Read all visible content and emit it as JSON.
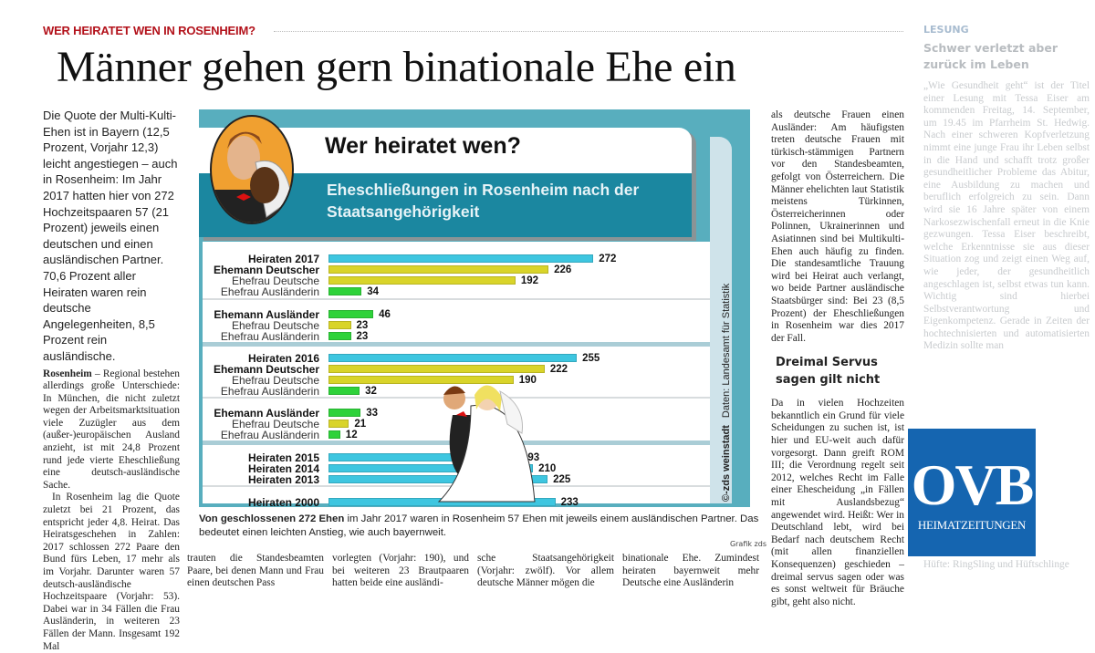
{
  "article": {
    "kicker": "WER HEIRATET WEN IN ROSENHEIM?",
    "headline": "Männer gehen gern binationale Ehe ein",
    "lead": "Die Quote der Multi-Kulti-Ehen ist in Bayern (12,5 Prozent, Vorjahr 12,3) leicht angestiegen – auch in Rosenheim: Im Jahr 2017 hatten hier von 272 Hochzeitspaaren 57 (21 Prozent) jeweils einen deutschen und einen ausländischen Partner. 70,6 Prozent aller Heiraten waren rein deutsche Angelegenheiten, 8,5 Prozent rein ausländische.",
    "dateline": "Rosenheim",
    "para1": " – Regional bestehen allerdings große Unterschiede: In München, die nicht zuletzt wegen der Arbeitsmarktsituation viele Zuzügler aus dem (außer-)europäischen Ausland anzieht, ist mit 24,8 Prozent rund jede vierte Eheschließung eine deutsch-ausländische Sache.",
    "para2": "In Rosenheim lag die Quote zuletzt bei 21 Prozent, das entspricht jeder 4,8. Heirat. Das Heiratsgeschehen in Zahlen: 2017 schlossen 272 Paare den Bund fürs Leben, 17 mehr als im Vorjahr. Darunter waren 57 deutsch-ausländische Hochzeitspaare (Vorjahr: 53). Dabei war in 34 Fällen die Frau Ausländerin, in weiteren 23 Fällen der Mann. Insgesamt 192 Mal",
    "bottom_cols": [
      "trauten die Standesbeamten Paare, bei denen Mann und Frau einen deutschen Pass",
      "vorlegten (Vorjahr: 190), und bei weiteren 23 Brautpaaren hatten beide eine ausländi-",
      "sche Staatsangehörigkeit (Vorjahr: zwölf). Vor allem deutsche Männer mögen die",
      "binationale Ehe. Zumindest heiraten bayernweit mehr Deutsche eine Ausländerin"
    ],
    "right_col": "als deutsche Frauen einen Ausländer: Am häufigsten treten deutsche Frauen mit türkisch-stämmigen Partnern vor den Standesbeamten, gefolgt von Österreichern. Die Männer ehelichten laut Statistik meistens Türkinnen, Österreicherinnen oder Polinnen, Ukrainerinnen und Asiatinnen sind bei Multikulti-Ehen auch häufig zu finden. Die standesamtliche Trauung wird bei Heirat auch verlangt, wo beide Partner ausländische Staatsbürger sind: Bei 23 (8,5 Prozent) der Eheschließungen in Rosenheim war dies 2017 der Fall.",
    "subhead": "Dreimal Servus sagen gilt nicht",
    "right_col2": "Da in vielen Hochzeiten bekanntlich ein Grund für viele Scheidungen zu suchen ist, ist hier und EU-weit auch dafür vorgesorgt. Dann greift ROM III; die Verordnung regelt seit 2012, welches Recht im Falle einer Ehescheidung „in Fällen mit Auslandsbezug“ angewendet wird. Heißt: Wer in Deutschland lebt, wird bei Bedarf nach deutschem Recht (mit allen finanziellen Konsequenzen) geschieden – dreimal servus sagen oder was es sonst weltweit für Bräuche gibt, geht also nicht.",
    "caption_bold": "Von geschlossenen 272 Ehen",
    "caption_rest": " im Jahr 2017 waren in Rosenheim 57 Ehen mit jeweils einem ausländischen Partner. Das bedeutet einen leichten Anstieg, wie auch bayernweit.",
    "caption_source": "Grafik zds"
  },
  "sidebar": {
    "tag": "LESUNG",
    "headline": "Schwer verletzt aber zurück im Leben",
    "body": "„Wie Gesundheit geht“ ist der Titel einer Lesung mit Tessa Eiser am kommenden Freitag, 14. September, um 19.45 im Pfarrheim St. Hedwig. Nach einer schweren Kopfverletzung nimmt eine junge Frau ihr Leben selbst in die Hand und schafft trotz großer gesundheitlicher Probleme das Abitur, eine Ausbildung zu machen und beruflich erfolgreich zu sein. Dann wird sie 16 Jahre später von einem Narkosezwischenfall erneut in die Knie gezwungen. Tessa Eiser beschreibt, welche Erkenntnisse sie aus dieser Situation zog und zeigt einen Weg auf, wie jeder, der gesundheitlich angeschlagen ist, selbst etwas tun kann. Wichtig sind hierbei Selbstverantwortung und Eigenkompetenz. Gerade in Zeiten der hochtechnisierten und automatisierten Medizin sollte man",
    "bottom": "Hüfte: RingSling und Hüftschlinge"
  },
  "logo": {
    "name": "OVB",
    "sub": "HEIMATZEITUNGEN",
    "color": "#1565b0"
  },
  "chart_data": {
    "type": "bar",
    "orientation": "horizontal",
    "title": "Wer heiratet wen?",
    "subtitle": "Eheschließungen in Rosenheim nach der Staatsangehörigkeit",
    "source": "Daten: Landesamt für Statistik",
    "copyright": "©-zds weinstadt",
    "colors": {
      "total": "#3ec6e0",
      "german": "#d9d42a",
      "foreign": "#2ed23a",
      "frame": "#58aebe",
      "header": "#1b87a0"
    },
    "rows": [
      {
        "label": "Heiraten 2017",
        "value": 272,
        "kind": "total",
        "bold": true
      },
      {
        "label": "Ehemann Deutscher",
        "value": 226,
        "kind": "german",
        "bold": true
      },
      {
        "label": "Ehefrau Deutsche",
        "value": 192,
        "kind": "german",
        "bold": false
      },
      {
        "label": "Ehefrau Ausländerin",
        "value": 34,
        "kind": "foreign",
        "bold": false
      },
      {
        "label": "Ehemann Ausländer",
        "value": 46,
        "kind": "foreign",
        "bold": true
      },
      {
        "label": "Ehefrau Deutsche",
        "value": 23,
        "kind": "german",
        "bold": false
      },
      {
        "label": "Ehefrau Ausländerin",
        "value": 23,
        "kind": "foreign",
        "bold": false
      },
      {
        "label": "Heiraten 2016",
        "value": 255,
        "kind": "total",
        "bold": true
      },
      {
        "label": "Ehemann Deutscher",
        "value": 222,
        "kind": "german",
        "bold": true
      },
      {
        "label": "Ehefrau Deutsche",
        "value": 190,
        "kind": "german",
        "bold": false
      },
      {
        "label": "Ehefrau Ausländerin",
        "value": 32,
        "kind": "foreign",
        "bold": false
      },
      {
        "label": "Ehemann Ausländer",
        "value": 33,
        "kind": "foreign",
        "bold": true
      },
      {
        "label": "Ehefrau Deutsche",
        "value": 21,
        "kind": "german",
        "bold": false
      },
      {
        "label": "Ehefrau Ausländerin",
        "value": 12,
        "kind": "foreign",
        "bold": false
      },
      {
        "label": "Heiraten 2015",
        "value": 193,
        "kind": "total",
        "bold": true
      },
      {
        "label": "Heiraten 2014",
        "value": 210,
        "kind": "total",
        "bold": true
      },
      {
        "label": "Heiraten 2013",
        "value": 225,
        "kind": "total",
        "bold": true
      },
      {
        "label": "Heiraten 2000",
        "value": 233,
        "kind": "total",
        "bold": true
      }
    ]
  }
}
